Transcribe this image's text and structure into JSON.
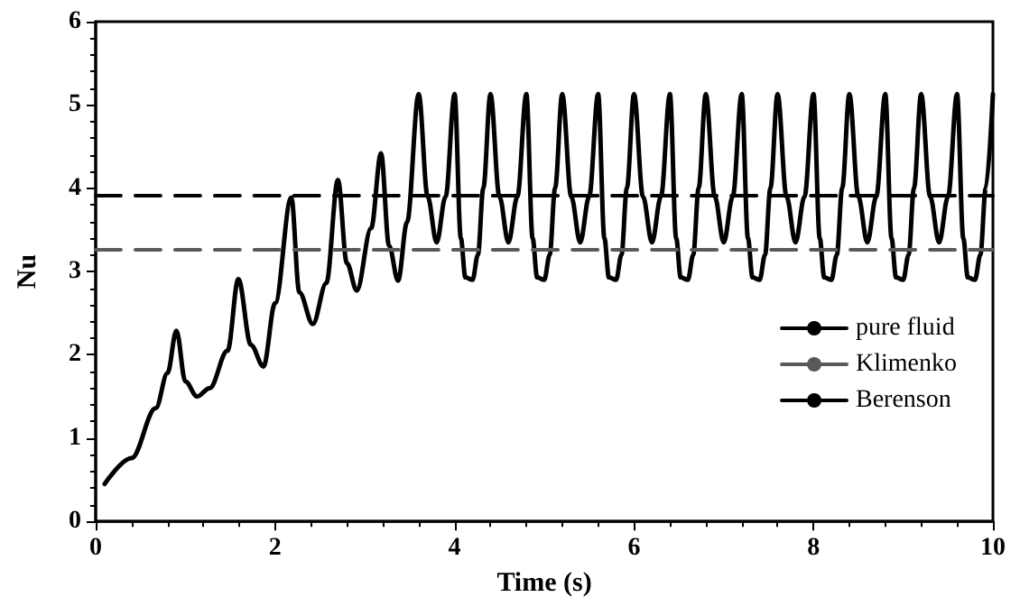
{
  "chart_data": {
    "type": "line",
    "xlabel": "Time (s)",
    "ylabel": "Nu",
    "xlim": [
      0,
      10
    ],
    "xticks": [
      0,
      2,
      4,
      6,
      8,
      10
    ],
    "ylim": [
      0,
      6
    ],
    "yticks": [
      0,
      1,
      2,
      3,
      4,
      5,
      6
    ],
    "grid": false,
    "legend": "right",
    "marker": "none",
    "series": [
      {
        "name": "pure fluid",
        "color": "#000000",
        "line_style": "solid",
        "x": [
          0.1,
          0.4,
          0.67,
          0.8,
          0.9,
          1.0,
          1.13,
          1.27,
          1.47,
          1.59,
          1.73,
          1.87,
          2.0,
          2.18,
          2.27,
          2.42,
          2.57,
          2.7,
          2.8,
          2.91,
          3.07,
          3.18,
          3.27,
          3.37,
          3.47,
          3.6,
          3.7,
          3.8,
          3.9,
          4.0,
          4.07,
          4.12,
          4.2,
          4.26,
          4.32,
          4.4,
          4.5,
          4.6,
          4.7,
          4.8,
          4.87,
          4.92,
          5.0,
          5.06,
          5.12,
          5.2,
          5.3,
          5.4,
          5.5,
          5.6,
          5.67,
          5.72,
          5.8,
          5.86,
          5.92,
          6.0,
          6.1,
          6.2,
          6.3,
          6.4,
          6.47,
          6.52,
          6.6,
          6.66,
          6.72,
          6.8,
          6.9,
          7.0,
          7.1,
          7.2,
          7.27,
          7.32,
          7.4,
          7.46,
          7.52,
          7.6,
          7.7,
          7.8,
          7.9,
          8.0,
          8.07,
          8.12,
          8.2,
          8.26,
          8.32,
          8.4,
          8.5,
          8.6,
          8.7,
          8.8,
          8.87,
          8.92,
          9.0,
          9.06,
          9.12,
          9.2,
          9.3,
          9.4,
          9.5,
          9.6,
          9.67,
          9.72,
          9.8,
          9.86,
          9.92,
          10.0
        ],
        "values": [
          0.45,
          0.76,
          1.36,
          1.78,
          2.29,
          1.68,
          1.5,
          1.6,
          2.05,
          2.91,
          2.12,
          1.86,
          2.62,
          3.89,
          2.75,
          2.37,
          2.86,
          4.1,
          3.1,
          2.77,
          3.52,
          4.42,
          3.31,
          2.89,
          3.59,
          5.13,
          3.9,
          3.35,
          3.9,
          5.13,
          3.4,
          2.93,
          2.9,
          3.2,
          4.0,
          5.13,
          3.9,
          3.35,
          3.9,
          5.13,
          3.4,
          2.93,
          2.9,
          3.2,
          4.0,
          5.13,
          3.9,
          3.35,
          3.9,
          5.13,
          3.4,
          2.93,
          2.9,
          3.2,
          4.0,
          5.13,
          3.9,
          3.35,
          3.9,
          5.13,
          3.4,
          2.93,
          2.9,
          3.2,
          4.0,
          5.13,
          3.9,
          3.35,
          3.9,
          5.13,
          3.4,
          2.93,
          2.9,
          3.2,
          4.0,
          5.13,
          3.9,
          3.35,
          3.9,
          5.13,
          3.4,
          2.93,
          2.9,
          3.2,
          4.0,
          5.13,
          3.9,
          3.35,
          3.9,
          5.13,
          3.4,
          2.93,
          2.9,
          3.2,
          4.0,
          5.13,
          3.9,
          3.35,
          3.9,
          5.13,
          3.4,
          2.93,
          2.9,
          3.2,
          4.0,
          5.13
        ]
      },
      {
        "name": "Klimenko",
        "color": "#595959",
        "line_style": "dashed",
        "x": [
          0,
          10
        ],
        "values": [
          3.26,
          3.26
        ]
      },
      {
        "name": "Berenson",
        "color": "#000000",
        "line_style": "dashed",
        "x": [
          0,
          10
        ],
        "values": [
          3.91,
          3.91
        ]
      }
    ]
  }
}
